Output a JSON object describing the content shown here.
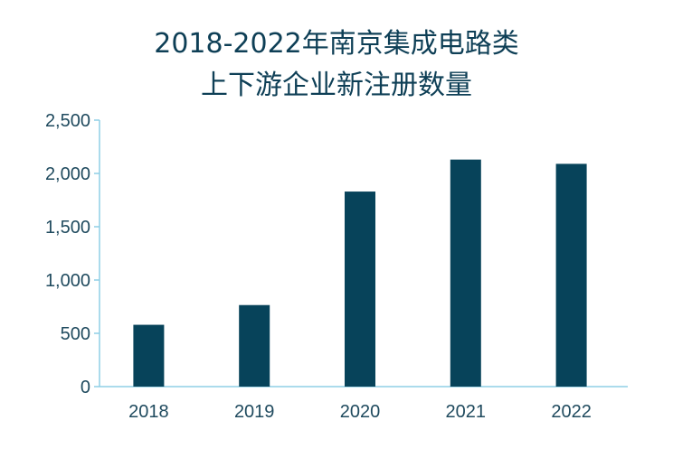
{
  "title_lines": [
    "2018-2022年南京集成电路类",
    "上下游企业新注册数量"
  ],
  "colors": {
    "bar": "#07435a",
    "axis": "#8fcfe6",
    "text": "#0e3f56"
  },
  "chart_data": {
    "type": "bar",
    "title": "2018-2022年南京集成电路类上下游企业新注册数量",
    "categories": [
      "2018",
      "2019",
      "2020",
      "2021",
      "2022"
    ],
    "values": [
      580,
      765,
      1830,
      2130,
      2090
    ],
    "ylim": [
      0,
      2500
    ],
    "yticks": [
      0,
      500,
      1000,
      1500,
      2000,
      2500
    ],
    "ytick_labels": [
      "0",
      "500",
      "1,000",
      "1,500",
      "2,000",
      "2,500"
    ],
    "grid": false,
    "xlabel": "",
    "ylabel": ""
  }
}
